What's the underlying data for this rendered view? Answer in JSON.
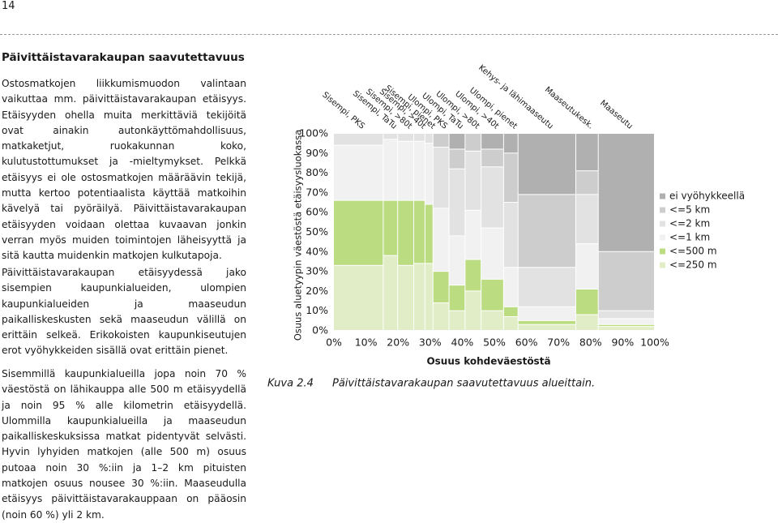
{
  "page_number": "14",
  "heading": "Päivittäistavarakaupan saavutettavuus",
  "paragraphs": [
    "Ostosmatkojen liikkumismuodon valintaan vaikuttaa mm. päivittäistavarakaupan etäisyys. Etäisyyden ohella muita merkittäviä tekijöitä ovat ainakin autonkäyttömahdollisuus, matkaketjut, ruokakunnan koko, kulutustottumukset ja -mieltymykset. Pelkkä etäisyys ei ole ostosmatkojen määräävin tekijä, mutta kertoo potentiaalista käyttää matkoihin kävelyä tai pyöräilyä. Päivittäistavarakaupan etäisyyden voidaan olettaa kuvaavan jonkin verran myös muiden toimintojen läheisyyttä ja sitä kautta muidenkin matkojen kulkutapoja.",
    "Päivittäistavarakaupan etäisyydessä jako sisempien kaupunkialueiden, ulompien kaupunkialueiden ja maaseudun paikalliskeskusten sekä maaseudun välillä on erittäin selkeä. Erikokoisten kaupunkiseutujen erot vyöhykkeiden sisällä ovat erittäin pienet.",
    "Sisemmillä kaupunkialueilla jopa noin 70 % väestöstä on lähikauppa alle 500 m etäisyydellä ja noin 95 % alle kilometrin etäisyydellä. Ulommilla kaupunkialueilla ja maaseudun paikalliskeskuksissa matkat pidentyvät selvästi. Hyvin lyhyiden matkojen (alle 500 m) osuus putoaa noin 30 %:iin ja 1–2 km pituisten matkojen osuus nousee 30 %:iin. Maaseudulla etäisyys päivittäistavarakauppaan on pääosin (noin 60 %) yli 2 km."
  ],
  "chart_data": {
    "type": "marimekko",
    "y_label": "Osuus aluetyypin väestöstä etäisyysluokassa",
    "x_label": "Osuus kohdeväestöstä",
    "categories": [
      "Sisempi, PKS",
      "Sisempi, TaTu",
      "Sisempi, >80t",
      "Sisempi, >40t",
      "Sisempi, pienet",
      "Ulompi, PKS",
      "Ulompi, TaTu",
      "Ulompi, >80t",
      "Ulompi, >40t",
      "Ulompi, pienet",
      "Kehys- ja lähimaaseutu",
      "Maaseutukesk.",
      "Maaseutu"
    ],
    "widths": [
      15.5,
      4.5,
      5,
      3.5,
      2.5,
      5,
      5,
      5,
      7,
      4.5,
      18,
      7,
      17.5
    ],
    "series": [
      {
        "name": "ei vyöhykkeellä",
        "color": "#b0b0b0",
        "values": [
          0,
          0,
          0,
          0,
          0,
          0,
          8,
          0,
          8,
          10,
          31,
          19,
          60
        ]
      },
      {
        "name": "<=5 km",
        "color": "#cdcdcd",
        "values": [
          0,
          0,
          0,
          0,
          0,
          7,
          10,
          9,
          9,
          25,
          37,
          12,
          30
        ]
      },
      {
        "name": "<=2 km",
        "color": "#e2e2e2",
        "values": [
          6,
          3,
          4,
          4,
          5,
          31,
          34,
          30,
          31,
          33,
          20,
          25,
          4
        ]
      },
      {
        "name": "<=1 km",
        "color": "#f1f1f1",
        "values": [
          28,
          31,
          30,
          30,
          31,
          32,
          25,
          25,
          26,
          20,
          7,
          23,
          3
        ]
      },
      {
        "name": "<=500 m",
        "color": "#bcdc82",
        "values": [
          33,
          28,
          33,
          32,
          30,
          16,
          13,
          16,
          16,
          5,
          2,
          13,
          1
        ]
      },
      {
        "name": "<=250 m",
        "color": "#e0edc6",
        "values": [
          33,
          38,
          33,
          34,
          34,
          14,
          10,
          20,
          10,
          7,
          3,
          8,
          2
        ]
      }
    ],
    "xlim": [
      0,
      100
    ],
    "ylim": [
      0,
      100
    ],
    "xticks": [
      {
        "value": 0,
        "label": "0%"
      },
      {
        "value": 10,
        "label": "10%"
      },
      {
        "value": 20,
        "label": "20%"
      },
      {
        "value": 30,
        "label": "30%"
      },
      {
        "value": 40,
        "label": "40%"
      },
      {
        "value": 50,
        "label": "50%"
      },
      {
        "value": 60,
        "label": "60%"
      },
      {
        "value": 70,
        "label": "70%"
      },
      {
        "value": 80,
        "label": "80%"
      },
      {
        "value": 90,
        "label": "90%"
      },
      {
        "value": 100,
        "label": "100%"
      }
    ],
    "yticks": [
      {
        "value": 0,
        "label": "0%"
      },
      {
        "value": 10,
        "label": "10%"
      },
      {
        "value": 20,
        "label": "20%"
      },
      {
        "value": 30,
        "label": "30%"
      },
      {
        "value": 40,
        "label": "40%"
      },
      {
        "value": 50,
        "label": "50%"
      },
      {
        "value": 60,
        "label": "60%"
      },
      {
        "value": 70,
        "label": "70%"
      },
      {
        "value": 80,
        "label": "80%"
      },
      {
        "value": 90,
        "label": "90%"
      },
      {
        "value": 100,
        "label": "100%"
      }
    ]
  },
  "caption": {
    "label": "Kuva 2.4",
    "text": "Päivittäistavarakaupan saavutettavuus alueittain."
  }
}
